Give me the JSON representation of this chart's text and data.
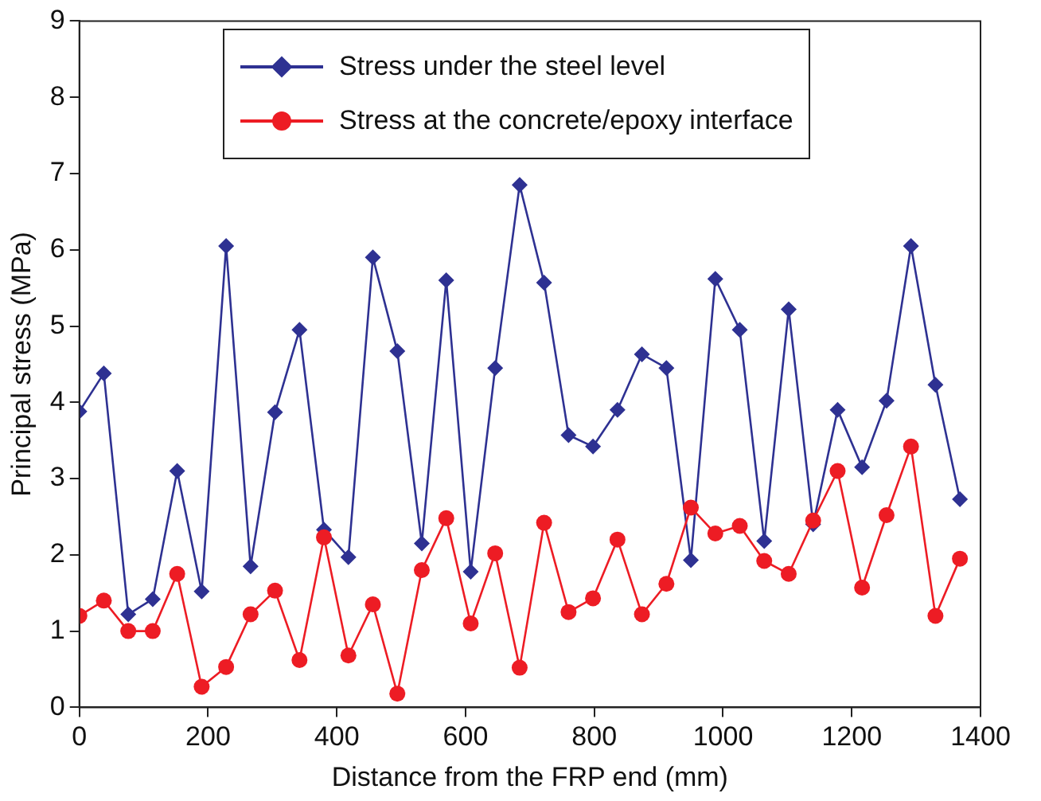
{
  "chart_data": {
    "type": "line",
    "xlabel": "Distance from the FRP end (mm)",
    "ylabel": "Principal stress (MPa)",
    "x": [
      0,
      38,
      76,
      114,
      152,
      190,
      228,
      266,
      304,
      342,
      380,
      418,
      456,
      494,
      532,
      570,
      608,
      646,
      684,
      722,
      760,
      798,
      836,
      874,
      912,
      950,
      988,
      1026,
      1064,
      1102,
      1140,
      1178,
      1216,
      1254,
      1292,
      1330,
      1368
    ],
    "series": [
      {
        "name": "Stress under the steel level",
        "color": "#2e3192",
        "marker": "diamond",
        "values": [
          3.88,
          4.38,
          1.22,
          1.42,
          3.1,
          1.52,
          6.05,
          1.85,
          3.87,
          4.95,
          2.33,
          1.97,
          5.9,
          4.67,
          2.15,
          5.6,
          1.78,
          4.45,
          6.85,
          5.57,
          3.57,
          3.42,
          3.9,
          4.63,
          4.45,
          1.93,
          5.62,
          4.95,
          2.18,
          5.22,
          2.4,
          3.9,
          3.15,
          4.02,
          6.05,
          4.23,
          2.73
        ]
      },
      {
        "name": "Stress at the concrete/epoxy interface",
        "color": "#ed1c24",
        "marker": "circle",
        "values": [
          1.2,
          1.4,
          1.0,
          1.0,
          1.75,
          0.27,
          0.53,
          1.22,
          1.53,
          0.62,
          2.23,
          0.68,
          1.35,
          0.18,
          1.8,
          2.48,
          1.1,
          2.02,
          0.52,
          2.42,
          1.25,
          1.43,
          2.2,
          1.22,
          1.62,
          2.62,
          2.28,
          2.38,
          1.92,
          1.75,
          2.45,
          3.1,
          1.57,
          2.52,
          3.42,
          1.2,
          1.95
        ]
      }
    ],
    "xlim": [
      0,
      1400
    ],
    "xticks": [
      0,
      200,
      400,
      600,
      800,
      1000,
      1200,
      1400
    ],
    "ylim": [
      0,
      9
    ],
    "yticks": [
      0,
      1,
      2,
      3,
      4,
      5,
      6,
      7,
      8,
      9
    ],
    "grid": false,
    "legend": "top",
    "line_style": "solid"
  }
}
